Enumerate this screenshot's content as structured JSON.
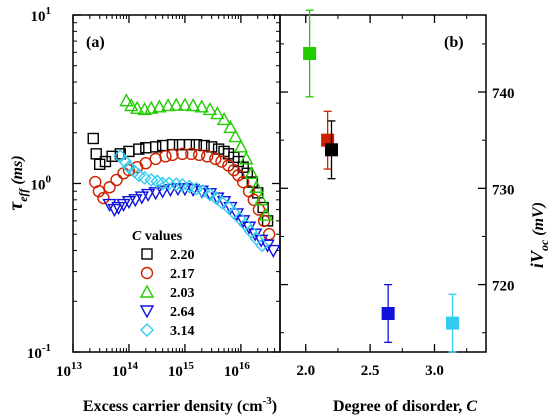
{
  "chart_data": [
    {
      "panel": "(a)",
      "type": "scatter",
      "xscale": "log",
      "yscale": "log",
      "xlim": [
        10000000000000.0,
        5e+16
      ],
      "ylim": [
        0.1,
        10
      ],
      "x_ticks": [
        "10",
        "10",
        "10",
        "10"
      ],
      "x_tick_exponents": [
        "13",
        "14",
        "15",
        "16"
      ],
      "y_ticks": [
        "10",
        "10",
        "10"
      ],
      "y_tick_exponents": [
        "-1",
        "0",
        "1"
      ],
      "xlabel_main": "Excess carrier density (cm",
      "xlabel_exp": "-3",
      "xlabel_close": ")",
      "ylabel_main": "τ",
      "ylabel_sub": "eff",
      "ylabel_units": " (ms)",
      "legend_title_var": "C",
      "legend_title_rest": " values",
      "legend_placement": "lower-center",
      "series": [
        {
          "name": "2.20",
          "marker": "square",
          "color": "#000000",
          "points": [
            [
              23000000000000.0,
              1.85
            ],
            [
              26000000000000.0,
              1.5
            ],
            [
              30000000000000.0,
              1.3
            ],
            [
              38000000000000.0,
              1.35
            ],
            [
              50000000000000.0,
              1.45
            ],
            [
              70000000000000.0,
              1.5
            ],
            [
              100000000000000.0,
              1.55
            ],
            [
              150000000000000.0,
              1.6
            ],
            [
              200000000000000.0,
              1.63
            ],
            [
              300000000000000.0,
              1.65
            ],
            [
              400000000000000.0,
              1.68
            ],
            [
              600000000000000.0,
              1.7
            ],
            [
              800000000000000.0,
              1.7
            ],
            [
              1200000000000000.0,
              1.7
            ],
            [
              1600000000000000.0,
              1.7
            ],
            [
              2200000000000000.0,
              1.68
            ],
            [
              3000000000000000.0,
              1.65
            ],
            [
              4000000000000000.0,
              1.6
            ],
            [
              5000000000000000.0,
              1.55
            ],
            [
              6000000000000000.0,
              1.5
            ],
            [
              7500000000000000.0,
              1.43
            ],
            [
              9000000000000000.0,
              1.35
            ],
            [
              1.1e+16,
              1.25
            ],
            [
              1.3e+16,
              1.15
            ],
            [
              1.6e+16,
              1.02
            ],
            [
              2e+16,
              0.88
            ],
            [
              2.5e+16,
              0.72
            ],
            [
              3e+16,
              0.6
            ]
          ]
        },
        {
          "name": "2.17",
          "marker": "circle",
          "color": "#cc2200",
          "points": [
            [
              25000000000000.0,
              1.02
            ],
            [
              29000000000000.0,
              0.9
            ],
            [
              35000000000000.0,
              0.82
            ],
            [
              45000000000000.0,
              0.95
            ],
            [
              60000000000000.0,
              1.05
            ],
            [
              80000000000000.0,
              1.15
            ],
            [
              100000000000000.0,
              1.2
            ],
            [
              140000000000000.0,
              1.25
            ],
            [
              200000000000000.0,
              1.32
            ],
            [
              300000000000000.0,
              1.4
            ],
            [
              450000000000000.0,
              1.45
            ],
            [
              600000000000000.0,
              1.48
            ],
            [
              900000000000000.0,
              1.5
            ],
            [
              1300000000000000.0,
              1.5
            ],
            [
              1800000000000000.0,
              1.48
            ],
            [
              2500000000000000.0,
              1.45
            ],
            [
              3500000000000000.0,
              1.4
            ],
            [
              4500000000000000.0,
              1.35
            ],
            [
              6000000000000000.0,
              1.28
            ],
            [
              7500000000000000.0,
              1.2
            ],
            [
              9000000000000000.0,
              1.12
            ],
            [
              1.1e+16,
              1.02
            ],
            [
              1.4e+16,
              0.9
            ],
            [
              1.7e+16,
              0.8
            ],
            [
              2.1e+16,
              0.7
            ],
            [
              2.6e+16,
              0.6
            ],
            [
              3.2e+16,
              0.5
            ]
          ]
        },
        {
          "name": "2.03",
          "marker": "triangle-up",
          "color": "#22cc00",
          "points": [
            [
              90000000000000.0,
              3.1
            ],
            [
              110000000000000.0,
              2.9
            ],
            [
              140000000000000.0,
              2.8
            ],
            [
              190000000000000.0,
              2.75
            ],
            [
              250000000000000.0,
              2.8
            ],
            [
              350000000000000.0,
              2.85
            ],
            [
              500000000000000.0,
              2.9
            ],
            [
              700000000000000.0,
              2.92
            ],
            [
              1000000000000000.0,
              2.92
            ],
            [
              1400000000000000.0,
              2.9
            ],
            [
              2000000000000000.0,
              2.85
            ],
            [
              2800000000000000.0,
              2.75
            ],
            [
              3800000000000000.0,
              2.6
            ],
            [
              5000000000000000.0,
              2.4
            ],
            [
              6500000000000000.0,
              2.15
            ],
            [
              8000000000000000.0,
              1.9
            ],
            [
              1e+16,
              1.65
            ],
            [
              1.25e+16,
              1.4
            ],
            [
              1.55e+16,
              1.15
            ],
            [
              1.9e+16,
              0.95
            ],
            [
              2.3e+16,
              0.8
            ],
            [
              2.8e+16,
              0.65
            ]
          ]
        },
        {
          "name": "2.64",
          "marker": "triangle-down",
          "color": "#1111dd",
          "points": [
            [
              45000000000000.0,
              0.75
            ],
            [
              55000000000000.0,
              0.7
            ],
            [
              65000000000000.0,
              0.72
            ],
            [
              80000000000000.0,
              0.75
            ],
            [
              100000000000000.0,
              0.78
            ],
            [
              130000000000000.0,
              0.8
            ],
            [
              170000000000000.0,
              0.83
            ],
            [
              220000000000000.0,
              0.86
            ],
            [
              300000000000000.0,
              0.88
            ],
            [
              400000000000000.0,
              0.9
            ],
            [
              550000000000000.0,
              0.92
            ],
            [
              750000000000000.0,
              0.93
            ],
            [
              1000000000000000.0,
              0.93
            ],
            [
              1400000000000000.0,
              0.92
            ],
            [
              2000000000000000.0,
              0.9
            ],
            [
              2800000000000000.0,
              0.87
            ],
            [
              3800000000000000.0,
              0.82
            ],
            [
              5000000000000000.0,
              0.78
            ],
            [
              6500000000000000.0,
              0.72
            ],
            [
              8500000000000000.0,
              0.66
            ],
            [
              1.1e+16,
              0.6
            ],
            [
              1.4e+16,
              0.55
            ],
            [
              1.8e+16,
              0.5
            ],
            [
              2.3e+16,
              0.46
            ],
            [
              3e+16,
              0.43
            ],
            [
              3.8e+16,
              0.4
            ]
          ]
        },
        {
          "name": "3.14",
          "marker": "diamond",
          "color": "#33ccee",
          "points": [
            [
              70000000000000.0,
              1.45
            ],
            [
              85000000000000.0,
              1.35
            ],
            [
              100000000000000.0,
              1.25
            ],
            [
              125000000000000.0,
              1.18
            ],
            [
              150000000000000.0,
              1.12
            ],
            [
              190000000000000.0,
              1.08
            ],
            [
              250000000000000.0,
              1.05
            ],
            [
              320000000000000.0,
              1.03
            ],
            [
              400000000000000.0,
              1.0
            ],
            [
              520000000000000.0,
              1.0
            ],
            [
              700000000000000.0,
              0.99
            ],
            [
              900000000000000.0,
              0.98
            ],
            [
              1200000000000000.0,
              0.96
            ],
            [
              1600000000000000.0,
              0.93
            ],
            [
              2100000000000000.0,
              0.9
            ],
            [
              2800000000000000.0,
              0.86
            ],
            [
              3600000000000000.0,
              0.82
            ],
            [
              4600000000000000.0,
              0.77
            ],
            [
              6000000000000000.0,
              0.72
            ],
            [
              7500000000000000.0,
              0.67
            ],
            [
              9500000000000000.0,
              0.62
            ],
            [
              1.2e+16,
              0.57
            ],
            [
              1.5e+16,
              0.52
            ],
            [
              1.9e+16,
              0.47
            ],
            [
              2.4e+16,
              0.43
            ]
          ]
        }
      ]
    },
    {
      "panel": "(b)",
      "type": "scatter",
      "xlim": [
        1.8,
        3.4
      ],
      "ylim": [
        713,
        748
      ],
      "x_ticks": [
        2.0,
        2.5,
        3.0
      ],
      "x_tick_labels": [
        "2.0",
        "2.5",
        "3.0"
      ],
      "y_ticks": [
        720,
        730,
        740
      ],
      "y_tick_labels": [
        "720",
        "730",
        "740"
      ],
      "xlabel_main": "Degree of disorder, ",
      "xlabel_var": "C",
      "ylabel_main": "iV",
      "ylabel_sub": "oc",
      "ylabel_units": " (mV)",
      "points": [
        {
          "x": 2.03,
          "y": 744.0,
          "err": 4.5,
          "color": "#22cc00"
        },
        {
          "x": 2.17,
          "y": 735.0,
          "err": 3.0,
          "color": "#cc2200"
        },
        {
          "x": 2.2,
          "y": 734.0,
          "err": 3.0,
          "color": "#000000"
        },
        {
          "x": 2.64,
          "y": 717.0,
          "err": 3.0,
          "color": "#1111dd"
        },
        {
          "x": 3.14,
          "y": 716.0,
          "err": 3.0,
          "color": "#33ccee"
        }
      ]
    }
  ]
}
